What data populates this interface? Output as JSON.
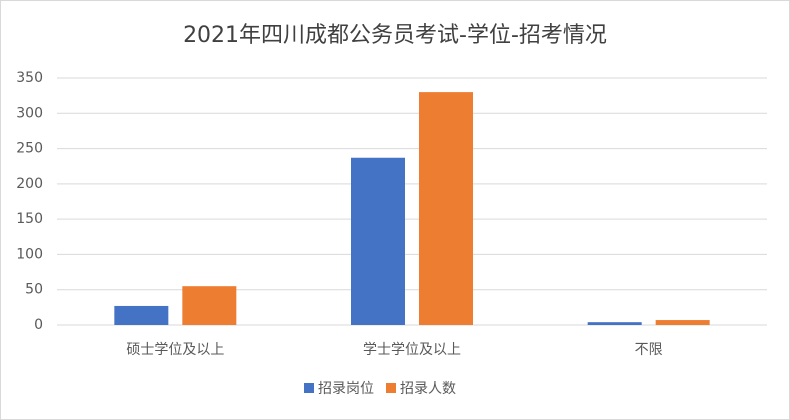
{
  "chart_data": {
    "type": "bar",
    "title": "2021年四川成都公务员考试-学位-招考情况",
    "categories": [
      "硕士学位及以上",
      "学士学位及以上",
      "不限"
    ],
    "series": [
      {
        "name": "招录岗位",
        "color": "#4472c4",
        "values": [
          27,
          237,
          4
        ]
      },
      {
        "name": "招录人数",
        "color": "#ed7d31",
        "values": [
          55,
          330,
          7
        ]
      }
    ],
    "ylim": [
      0,
      350
    ],
    "yticks": [
      0,
      50,
      100,
      150,
      200,
      250,
      300,
      350
    ],
    "grid": true,
    "legend": "bottom"
  }
}
